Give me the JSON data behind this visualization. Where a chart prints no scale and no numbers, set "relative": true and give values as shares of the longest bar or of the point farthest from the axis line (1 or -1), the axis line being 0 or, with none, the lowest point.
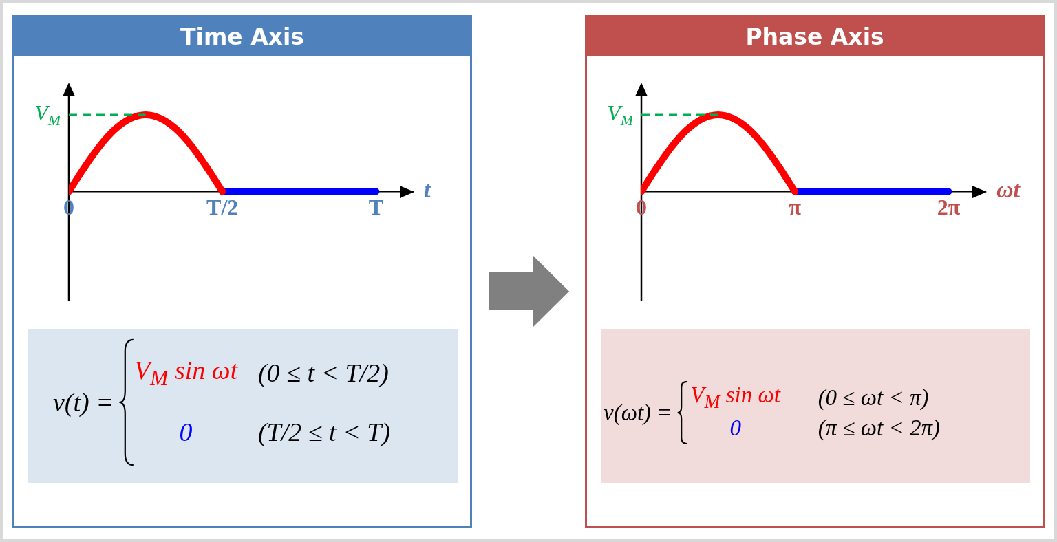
{
  "chart_data": [
    {
      "type": "line",
      "title": "Time Axis",
      "xlabel": "t",
      "relative": true,
      "marker": "none",
      "categories": [
        "0",
        null,
        null,
        null,
        null,
        null,
        null,
        null,
        null,
        null,
        "T/2",
        null,
        null,
        null,
        null,
        null,
        null,
        null,
        null,
        null,
        "T"
      ],
      "series": [
        {
          "color": "#ff0000",
          "values": [
            0,
            0.31,
            0.59,
            0.81,
            0.95,
            1,
            0.95,
            0.81,
            0.59,
            0.31,
            0,
            null,
            null,
            null,
            null,
            null,
            null,
            null,
            null,
            null,
            null
          ]
        },
        {
          "color": "#0000ff",
          "values": [
            null,
            null,
            null,
            null,
            null,
            null,
            null,
            null,
            null,
            null,
            0,
            0,
            0,
            0,
            0,
            0,
            0,
            0,
            0,
            0,
            0
          ]
        }
      ],
      "ref_lines": [
        {
          "axis": "y",
          "value": 1,
          "label": "V$_{M}$",
          "color": "#00b050",
          "line_style": "dashed"
        }
      ],
      "annotations": [
        "v(t) =",
        "V$_{M}$ sin ωt",
        "(0 ≤ t < T/2)",
        "0",
        "(T/2 ≤ t < T)"
      ]
    },
    {
      "type": "line",
      "title": "Phase Axis",
      "xlabel": "ωt",
      "relative": true,
      "marker": "none",
      "categories": [
        "0",
        null,
        null,
        null,
        null,
        null,
        null,
        null,
        null,
        null,
        "π",
        null,
        null,
        null,
        null,
        null,
        null,
        null,
        null,
        null,
        "2π"
      ],
      "series": [
        {
          "color": "#ff0000",
          "values": [
            0,
            0.31,
            0.59,
            0.81,
            0.95,
            1,
            0.95,
            0.81,
            0.59,
            0.31,
            0,
            null,
            null,
            null,
            null,
            null,
            null,
            null,
            null,
            null,
            null
          ]
        },
        {
          "color": "#0000ff",
          "values": [
            null,
            null,
            null,
            null,
            null,
            null,
            null,
            null,
            null,
            null,
            0,
            0,
            0,
            0,
            0,
            0,
            0,
            0,
            0,
            0,
            0
          ]
        }
      ],
      "ref_lines": [
        {
          "axis": "y",
          "value": 1,
          "label": "V$_{M}$",
          "color": "#00b050",
          "line_style": "dashed"
        }
      ],
      "annotations": [
        "v(ωt) =",
        "V$_{M}$ sin ωt",
        "(0 ≤ ωt < π)",
        "0",
        "(π ≤ ωt < 2π)"
      ]
    }
  ]
}
